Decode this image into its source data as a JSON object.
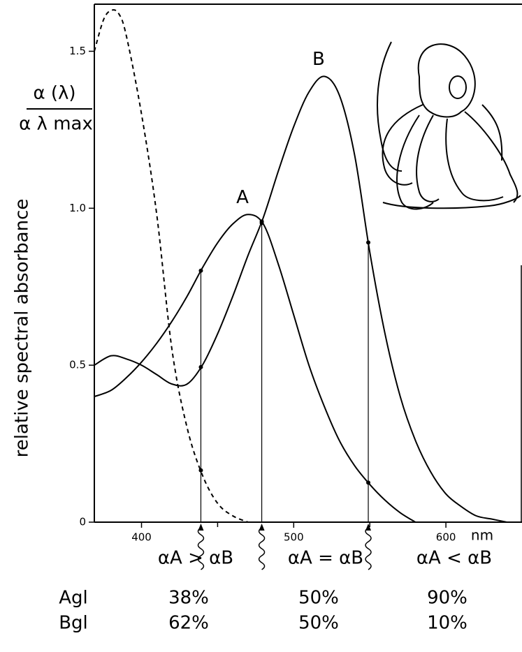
{
  "chart_data": {
    "type": "line",
    "ylabel": "relative spectral absorbance",
    "yfrac_top": "α (λ)",
    "yfrac_bottom": "α λ max",
    "xunit": "nm",
    "xlim": [
      369,
      650
    ],
    "ylim": [
      0,
      1.65
    ],
    "xticks": [
      400,
      500,
      600
    ],
    "xminor_ticks": [
      450,
      550
    ],
    "yticks": [
      0,
      0.5,
      {
        "value": 1,
        "label": "1.0"
      },
      1.5
    ],
    "series": [
      {
        "name": "A",
        "color": "#000",
        "dashed": false,
        "x": [
          369,
          380,
          390,
          400,
          410,
          420,
          430,
          440,
          450,
          460,
          470,
          480,
          490,
          500,
          510,
          520,
          530,
          540,
          550,
          560,
          570,
          580
        ],
        "values": [
          0.4,
          0.42,
          0.46,
          0.51,
          0.57,
          0.64,
          0.72,
          0.81,
          0.89,
          0.95,
          0.98,
          0.95,
          0.82,
          0.66,
          0.5,
          0.37,
          0.26,
          0.18,
          0.12,
          0.07,
          0.03,
          0
        ]
      },
      {
        "name": "B",
        "color": "#000",
        "dashed": false,
        "x": [
          369,
          380,
          390,
          400,
          410,
          420,
          430,
          440,
          450,
          460,
          470,
          480,
          490,
          500,
          510,
          520,
          530,
          540,
          550,
          560,
          570,
          580,
          590,
          600,
          610,
          620,
          630,
          640
        ],
        "values": [
          0.5,
          0.53,
          0.52,
          0.5,
          0.47,
          0.44,
          0.44,
          0.5,
          0.6,
          0.72,
          0.85,
          0.97,
          1.12,
          1.26,
          1.37,
          1.42,
          1.36,
          1.17,
          0.86,
          0.6,
          0.4,
          0.26,
          0.16,
          0.09,
          0.05,
          0.02,
          0.01,
          0
        ]
      },
      {
        "name": null,
        "color": "#000",
        "dashed": true,
        "x": [
          369,
          375,
          380,
          385,
          390,
          400,
          410,
          420,
          430,
          440,
          450,
          460,
          470
        ],
        "values": [
          1.5,
          1.6,
          1.63,
          1.62,
          1.55,
          1.3,
          0.98,
          0.55,
          0.3,
          0.15,
          0.06,
          0.02,
          0
        ]
      }
    ],
    "marker_x": [
      439,
      479,
      549
    ],
    "conditions": [
      "αA > αB",
      "αA = αB",
      "αA < αB"
    ],
    "table_rows": [
      {
        "label": "Agl",
        "cells": [
          "38%",
          "50%",
          "90%"
        ]
      },
      {
        "label": "Bgl",
        "cells": [
          "62%",
          "50%",
          "10%"
        ]
      }
    ]
  }
}
